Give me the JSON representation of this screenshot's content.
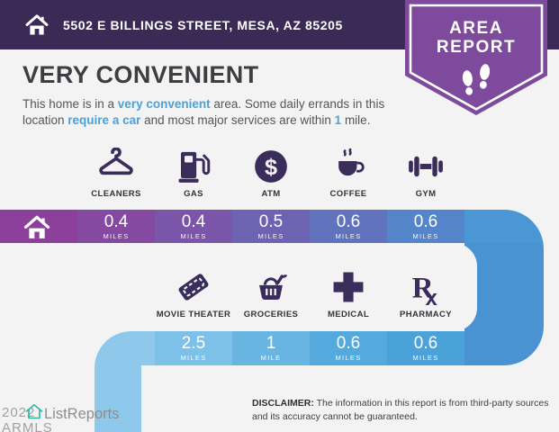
{
  "header": {
    "address": "5502 E BILLINGS STREET, MESA, AZ 85205"
  },
  "badge": {
    "line1": "AREA",
    "line2": "REPORT",
    "icon": "footprints-icon"
  },
  "title": "VERY CONVENIENT",
  "description": {
    "segments": [
      {
        "text": "This home is in a ",
        "style": "plain"
      },
      {
        "text": "very convenient",
        "style": "link"
      },
      {
        "text": " area. Some daily errands in this location ",
        "style": "plain"
      },
      {
        "text": "require a car",
        "style": "link"
      },
      {
        "text": " and most major services are within ",
        "style": "plain"
      },
      {
        "text": "1",
        "style": "link"
      },
      {
        "text": " mile.",
        "style": "plain"
      }
    ]
  },
  "amenities_top": [
    {
      "label": "CLEANERS",
      "icon": "hanger-icon",
      "distance": "0.4",
      "unit": "MILES"
    },
    {
      "label": "GAS",
      "icon": "gas-pump-icon",
      "distance": "0.4",
      "unit": "MILES"
    },
    {
      "label": "ATM",
      "icon": "dollar-icon",
      "distance": "0.5",
      "unit": "MILES"
    },
    {
      "label": "COFFEE",
      "icon": "coffee-cup-icon",
      "distance": "0.6",
      "unit": "MILES"
    },
    {
      "label": "GYM",
      "icon": "dumbbell-icon",
      "distance": "0.6",
      "unit": "MILES"
    }
  ],
  "amenities_bottom": [
    {
      "label": "MOVIE THEATER",
      "icon": "ticket-icon",
      "distance": "2.5",
      "unit": "MILES"
    },
    {
      "label": "GROCERIES",
      "icon": "grocery-basket-icon",
      "distance": "1",
      "unit": "MILE"
    },
    {
      "label": "MEDICAL",
      "icon": "medical-cross-icon",
      "distance": "0.6",
      "unit": "MILES"
    },
    {
      "label": "PHARMACY",
      "icon": "rx-icon",
      "distance": "0.6",
      "unit": "MILES"
    }
  ],
  "route": {
    "start_icon": "home-icon",
    "bar1_colors": [
      "#8d3f9c",
      "#8549a2",
      "#7a55a9",
      "#6e62b2",
      "#6173bd",
      "#5484c9",
      "#4b96d4"
    ],
    "connector_color": "#4a93d2",
    "bar2_colors": [
      "#4ba2d9",
      "#55aadd",
      "#69b5e2",
      "#7dc0e8",
      "#8ec9ec"
    ],
    "strip_color": "#8ec9ec"
  },
  "disclaimer": {
    "label": "DISCLAIMER:",
    "text": "The information in this report is from third-party sources and its accuracy cannot be guaranteed."
  },
  "watermark": {
    "year_text": "2022 ARMLS",
    "logo_text": "ListReports",
    "logo_icon": "house-outline-icon"
  },
  "colors": {
    "header_bg": "#3a2a55",
    "badge_purple": "#7d4a9c",
    "icon_purple": "#3a2d5c",
    "link_blue": "#4ba1d9",
    "background": "#f3f3f4",
    "logo_teal": "#2ab5a5"
  },
  "chart_data": {
    "type": "table",
    "title": "VERY CONVENIENT",
    "categories": [
      "CLEANERS",
      "GAS",
      "ATM",
      "COFFEE",
      "GYM",
      "MOVIE THEATER",
      "GROCERIES",
      "MEDICAL",
      "PHARMACY"
    ],
    "values": [
      0.4,
      0.4,
      0.5,
      0.6,
      0.6,
      2.5,
      1,
      0.6,
      0.6
    ],
    "unit": "miles",
    "layout": "snake-path from home, two rows, purple-to-blue gradient"
  }
}
